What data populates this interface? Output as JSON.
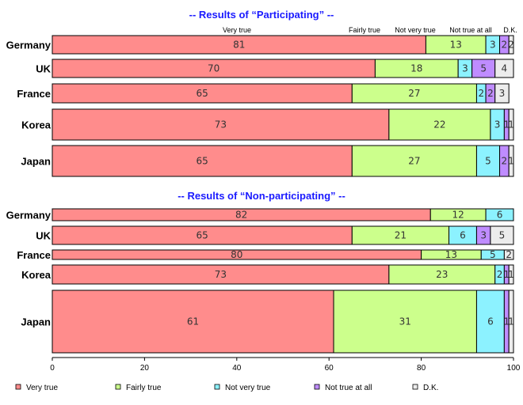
{
  "chart_data": [
    {
      "type": "bar",
      "orientation": "horizontal-stacked-100",
      "title": "-- Results of “Participating” --",
      "categories": [
        "Germany",
        "UK",
        "France",
        "Korea",
        "Japan"
      ],
      "column_headers": [
        "Very true",
        "Fairly true",
        "Not very true",
        "Not true at all",
        "D.K."
      ],
      "series": [
        {
          "name": "Very true",
          "values": [
            81,
            70,
            65,
            73,
            65
          ]
        },
        {
          "name": "Fairly true",
          "values": [
            13,
            18,
            27,
            22,
            27
          ]
        },
        {
          "name": "Not very true",
          "values": [
            3,
            3,
            2,
            3,
            5
          ]
        },
        {
          "name": "Not true at all",
          "values": [
            2,
            5,
            2,
            1,
            2
          ]
        },
        {
          "name": "D.K.",
          "values": [
            2,
            4,
            3,
            1,
            1
          ]
        }
      ],
      "value_labels": [
        [
          "81",
          "70",
          "65",
          "73",
          "65"
        ],
        [
          "13",
          "18",
          "27",
          "22",
          "27"
        ],
        [
          "3",
          "3",
          "2",
          "3",
          "5"
        ],
        [
          "2",
          "5",
          "2",
          "1",
          "2"
        ],
        [
          "2",
          "4",
          "3",
          "1",
          "1"
        ]
      ]
    },
    {
      "type": "bar",
      "orientation": "horizontal-stacked-100",
      "title": "-- Results of “Non-participating” --",
      "categories": [
        "Germany",
        "UK",
        "France",
        "Korea",
        "Japan"
      ],
      "series": [
        {
          "name": "Very true",
          "values": [
            82,
            65,
            80,
            73,
            61
          ]
        },
        {
          "name": "Fairly true",
          "values": [
            12,
            21,
            13,
            23,
            31
          ]
        },
        {
          "name": "Not very true",
          "values": [
            6,
            6,
            5,
            2,
            6
          ]
        },
        {
          "name": "Not true at all",
          "values": [
            0,
            3,
            0,
            1,
            1
          ]
        },
        {
          "name": "D.K.",
          "values": [
            0,
            5,
            2,
            1,
            1
          ]
        }
      ],
      "value_labels": [
        [
          "82",
          "65",
          "80",
          "73",
          "61"
        ],
        [
          "12",
          "21",
          "13",
          "23",
          "31"
        ],
        [
          "6",
          "6",
          "5",
          "2",
          "6"
        ],
        [
          "",
          "3",
          "",
          "1",
          "1"
        ],
        [
          "",
          "5",
          "2",
          "1",
          "1"
        ]
      ]
    }
  ],
  "x_axis": {
    "ticks": [
      "0",
      "20",
      "40",
      "60",
      "80",
      "100"
    ],
    "range": [
      0,
      100
    ]
  },
  "legend": {
    "position": "bottom",
    "items": [
      "Very true",
      "Fairly true",
      "Not very true",
      "Not true at all",
      "D.K."
    ]
  },
  "colors": [
    "#ff8c8c",
    "#ccff8c",
    "#8cf2ff",
    "#bf8cff",
    "#ececec"
  ],
  "bar_border_color": "#000000"
}
